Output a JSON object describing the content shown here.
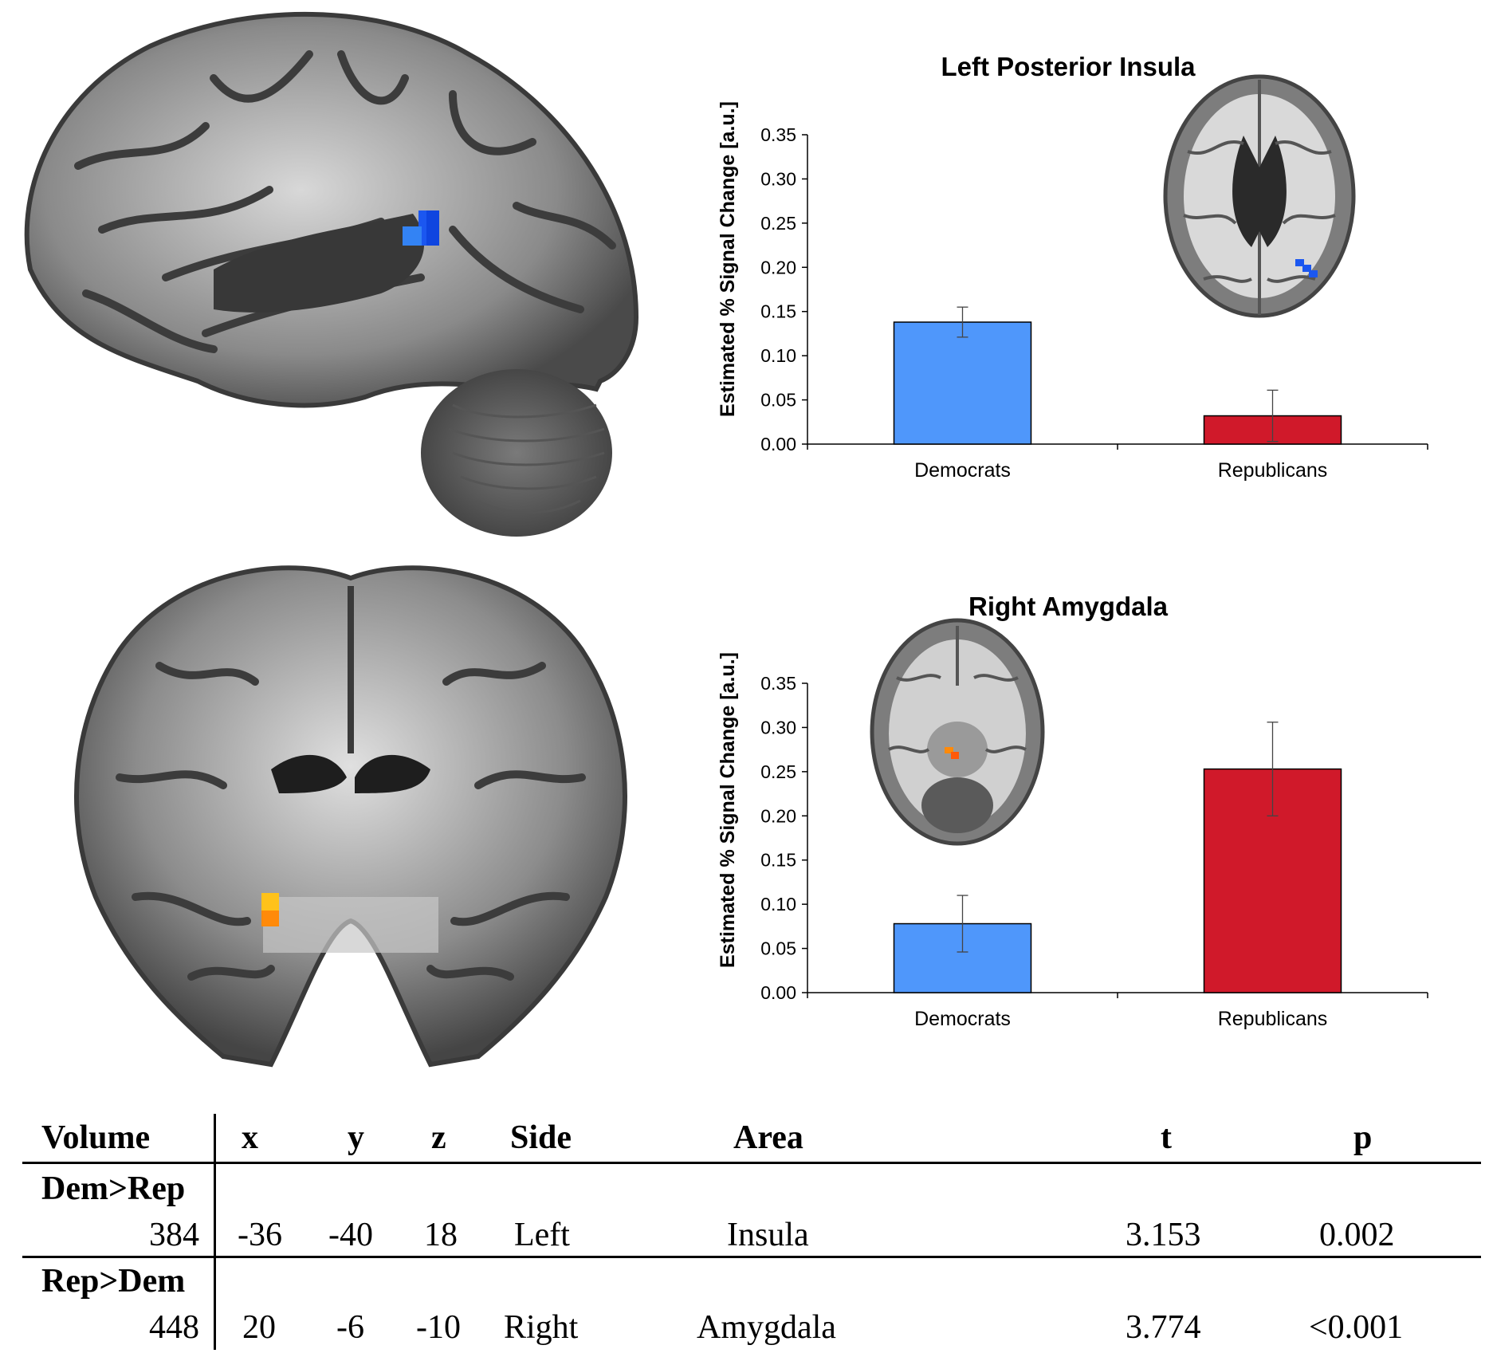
{
  "charts_text": {
    "insula_title": "Left Posterior Insula",
    "amygdala_title": "Right Amygdala",
    "ylabel": "Estimated % Signal Change [a.u.]"
  },
  "chart_data": [
    {
      "type": "bar",
      "title": "Left Posterior Insula",
      "xlabel": "",
      "ylabel": "Estimated % Signal Change [a.u.]",
      "categories": [
        "Democrats",
        "Republicans"
      ],
      "values": [
        0.138,
        0.032
      ],
      "error": [
        0.017,
        0.029
      ],
      "colors": [
        "#4f97fb",
        "#d0192a"
      ],
      "ylim": [
        0,
        0.35
      ],
      "yticks": [
        "0.00",
        "0.05",
        "0.10",
        "0.15",
        "0.20",
        "0.25",
        "0.30",
        "0.35"
      ],
      "grid": false
    },
    {
      "type": "bar",
      "title": "Right Amygdala",
      "xlabel": "",
      "ylabel": "Estimated % Signal Change [a.u.]",
      "categories": [
        "Democrats",
        "Republicans"
      ],
      "values": [
        0.078,
        0.253
      ],
      "error": [
        0.032,
        0.053
      ],
      "colors": [
        "#4f97fb",
        "#d0192a"
      ],
      "ylim": [
        0,
        0.35
      ],
      "yticks": [
        "0.00",
        "0.05",
        "0.10",
        "0.15",
        "0.20",
        "0.25",
        "0.30",
        "0.35"
      ],
      "grid": false
    }
  ],
  "table": {
    "headers": {
      "volume": "Volume",
      "x": "x",
      "y": "y",
      "z": "z",
      "side": "Side",
      "area": "Area",
      "t": "t",
      "p": "p"
    },
    "groups": [
      {
        "label": "Dem>Rep",
        "row": {
          "volume": "384",
          "x": "-36",
          "y": "-40",
          "z": "18",
          "side": "Left",
          "area": "Insula",
          "t": "3.153",
          "p": "0.002"
        }
      },
      {
        "label": "Rep>Dem",
        "row": {
          "volume": "448",
          "x": "20",
          "y": "-6",
          "z": "-10",
          "side": "Right",
          "area": "Amygdala",
          "t": "3.774",
          "p": "<0.001"
        }
      }
    ]
  }
}
